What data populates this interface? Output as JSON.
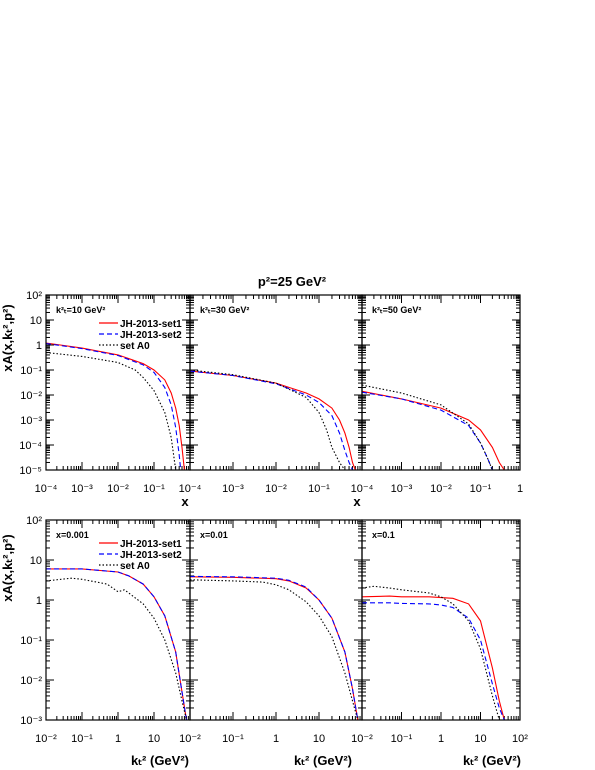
{
  "figure": {
    "title": "p²=25 GeV²",
    "row1_ylabel": "xA(x,kₜ²,p²)",
    "row2_ylabel": "xA(x,kₜ²,p²)",
    "row1_xlabel": "x",
    "row2_xlabel": "kₜ² (GeV²)"
  },
  "legend": {
    "entries": [
      {
        "name": "JH-2013-set1",
        "color": "#ff0000",
        "style": "solid"
      },
      {
        "name": "JH-2013-set2",
        "color": "#0000ff",
        "style": "dashed"
      },
      {
        "name": "set A0",
        "color": "#000000",
        "style": "dotted"
      }
    ]
  },
  "chart_data": [
    {
      "type": "line",
      "panel_label": "k²ₜ=10 GeV²",
      "xlabel": "x",
      "log_x": true,
      "log_y": true,
      "xlim": [
        0.0001,
        1
      ],
      "ylim": [
        1e-05,
        100
      ],
      "x_tick_labels": [
        "10⁻⁴",
        "10⁻³",
        "10⁻²",
        "10⁻¹",
        "1"
      ],
      "y_tick_labels": [
        "10⁻⁵",
        "10⁻⁴",
        "10⁻³",
        "10⁻²",
        "10⁻¹",
        "1",
        "10",
        "10²"
      ],
      "series": [
        {
          "name": "JH-2013-set1",
          "x": [
            0.0001,
            0.001,
            0.01,
            0.05,
            0.1,
            0.2,
            0.3,
            0.4,
            0.5,
            0.6,
            0.7
          ],
          "y": [
            1.2,
            0.75,
            0.4,
            0.18,
            0.1,
            0.04,
            0.012,
            0.003,
            0.0006,
            8e-05,
            1e-05
          ]
        },
        {
          "name": "JH-2013-set2",
          "x": [
            0.0001,
            0.001,
            0.01,
            0.05,
            0.1,
            0.2,
            0.3,
            0.4,
            0.5,
            0.55
          ],
          "y": [
            1.15,
            0.72,
            0.38,
            0.16,
            0.08,
            0.02,
            0.004,
            0.0005,
            4e-05,
            1e-05
          ]
        },
        {
          "name": "set A0",
          "x": [
            0.0001,
            0.001,
            0.01,
            0.03,
            0.05,
            0.1,
            0.2,
            0.3,
            0.4
          ],
          "y": [
            0.5,
            0.35,
            0.2,
            0.1,
            0.05,
            0.015,
            0.002,
            0.0002,
            1e-05
          ]
        }
      ]
    },
    {
      "type": "line",
      "panel_label": "k²ₜ=30 GeV²",
      "xlabel": "x",
      "log_x": true,
      "log_y": true,
      "xlim": [
        0.0001,
        1
      ],
      "ylim": [
        1e-05,
        100
      ],
      "x_tick_labels": [
        "10⁻⁴",
        "10⁻³",
        "10⁻²",
        "10⁻¹",
        "1"
      ],
      "y_tick_labels": [],
      "series": [
        {
          "name": "JH-2013-set1",
          "x": [
            0.0001,
            0.001,
            0.01,
            0.05,
            0.1,
            0.2,
            0.3,
            0.4,
            0.5,
            0.6,
            0.7
          ],
          "y": [
            0.09,
            0.06,
            0.03,
            0.012,
            0.007,
            0.003,
            0.001,
            0.0003,
            8e-05,
            2e-05,
            1e-05
          ]
        },
        {
          "name": "JH-2013-set2",
          "x": [
            0.0001,
            0.001,
            0.01,
            0.05,
            0.1,
            0.2,
            0.3,
            0.4,
            0.5,
            0.6
          ],
          "y": [
            0.09,
            0.06,
            0.028,
            0.01,
            0.005,
            0.0015,
            0.0003,
            6e-05,
            2e-05,
            1e-05
          ]
        },
        {
          "name": "set A0",
          "x": [
            0.0001,
            0.001,
            0.01,
            0.05,
            0.1,
            0.15,
            0.2,
            0.3,
            0.4
          ],
          "y": [
            0.1,
            0.065,
            0.03,
            0.008,
            0.002,
            0.0004,
            8e-05,
            2e-05,
            1e-05
          ]
        }
      ]
    },
    {
      "type": "line",
      "panel_label": "k²ₜ=50 GeV²",
      "xlabel": "x",
      "log_x": true,
      "log_y": true,
      "xlim": [
        0.0001,
        1
      ],
      "ylim": [
        1e-05,
        100
      ],
      "x_tick_labels": [
        "10⁻⁴",
        "10⁻³",
        "10⁻²",
        "10⁻¹",
        "1"
      ],
      "y_tick_labels": [],
      "series": [
        {
          "name": "JH-2013-set1",
          "x": [
            0.0001,
            0.001,
            0.01,
            0.05,
            0.1,
            0.2,
            0.3,
            0.4,
            0.5
          ],
          "y": [
            0.014,
            0.007,
            0.003,
            0.001,
            0.0004,
            8e-05,
            2e-05,
            1e-05,
            1e-05
          ]
        },
        {
          "name": "JH-2013-set2",
          "x": [
            0.0001,
            0.001,
            0.01,
            0.05,
            0.1,
            0.15,
            0.2
          ],
          "y": [
            0.013,
            0.007,
            0.0025,
            0.0006,
            0.00012,
            3e-05,
            1e-05
          ]
        },
        {
          "name": "set A0",
          "x": [
            0.0001,
            0.001,
            0.01,
            0.05,
            0.1,
            0.15,
            0.2
          ],
          "y": [
            0.025,
            0.012,
            0.004,
            0.0007,
            0.00012,
            3e-05,
            1e-05
          ]
        }
      ]
    },
    {
      "type": "line",
      "panel_label": "x=0.001",
      "xlabel": "kₜ² (GeV²)",
      "log_x": true,
      "log_y": true,
      "xlim": [
        0.01,
        100
      ],
      "ylim": [
        0.001,
        100
      ],
      "x_tick_labels": [
        "10⁻²",
        "10⁻¹",
        "1",
        "10",
        "10²"
      ],
      "y_tick_labels": [
        "10⁻³",
        "10⁻²",
        "10⁻¹",
        "1",
        "10",
        "10²"
      ],
      "series": [
        {
          "name": "JH-2013-set1",
          "x": [
            0.01,
            0.1,
            1,
            2,
            5,
            10,
            20,
            40,
            60,
            80
          ],
          "y": [
            6,
            6,
            5,
            4,
            2.5,
            1.2,
            0.4,
            0.05,
            0.005,
            0.001
          ]
        },
        {
          "name": "JH-2013-set2",
          "x": [
            0.01,
            0.1,
            1,
            2,
            5,
            10,
            20,
            40,
            60,
            80
          ],
          "y": [
            6,
            6,
            5,
            4,
            2.5,
            1.2,
            0.4,
            0.05,
            0.005,
            0.001
          ]
        },
        {
          "name": "set A0",
          "x": [
            0.01,
            0.05,
            0.1,
            0.5,
            1,
            1.5,
            2,
            5,
            10,
            20,
            40,
            60,
            80
          ],
          "y": [
            3,
            3.5,
            3.3,
            2.5,
            1.6,
            1.8,
            1.5,
            0.8,
            0.35,
            0.1,
            0.015,
            0.003,
            0.001
          ]
        }
      ]
    },
    {
      "type": "line",
      "panel_label": "x=0.01",
      "xlabel": "kₜ² (GeV²)",
      "log_x": true,
      "log_y": true,
      "xlim": [
        0.01,
        100
      ],
      "ylim": [
        0.001,
        100
      ],
      "x_tick_labels": [
        "10⁻²",
        "10⁻¹",
        "1",
        "10",
        "10²"
      ],
      "y_tick_labels": [],
      "series": [
        {
          "name": "JH-2013-set1",
          "x": [
            0.01,
            0.1,
            1,
            2,
            5,
            10,
            20,
            40,
            60,
            80
          ],
          "y": [
            3.8,
            3.7,
            3.4,
            3,
            2,
            1,
            0.35,
            0.05,
            0.006,
            0.001
          ]
        },
        {
          "name": "JH-2013-set2",
          "x": [
            0.01,
            0.1,
            1,
            2,
            5,
            10,
            20,
            40,
            60,
            80
          ],
          "y": [
            3.9,
            3.8,
            3.5,
            3.1,
            2.1,
            1,
            0.35,
            0.05,
            0.006,
            0.001
          ]
        },
        {
          "name": "set A0",
          "x": [
            0.01,
            0.1,
            0.5,
            1,
            2,
            5,
            10,
            20,
            40,
            60,
            80
          ],
          "y": [
            3.2,
            3,
            2.8,
            2.4,
            1.8,
            0.9,
            0.4,
            0.12,
            0.015,
            0.003,
            0.001
          ]
        }
      ]
    },
    {
      "type": "line",
      "panel_label": "x=0.1",
      "xlabel": "kₜ² (GeV²)",
      "log_x": true,
      "log_y": true,
      "xlim": [
        0.01,
        100
      ],
      "ylim": [
        0.001,
        100
      ],
      "x_tick_labels": [
        "10⁻²",
        "10⁻¹",
        "1",
        "10",
        "10²"
      ],
      "y_tick_labels": [],
      "series": [
        {
          "name": "JH-2013-set1",
          "x": [
            0.01,
            0.05,
            0.1,
            0.5,
            1,
            2,
            5,
            10,
            20,
            30,
            40,
            50
          ],
          "y": [
            1.2,
            1.25,
            1.2,
            1.2,
            1.15,
            1.1,
            0.8,
            0.3,
            0.02,
            0.003,
            0.001,
            0.001
          ]
        },
        {
          "name": "JH-2013-set2",
          "x": [
            0.01,
            0.05,
            0.1,
            0.5,
            1,
            2,
            5,
            10,
            20,
            30,
            40
          ],
          "y": [
            0.85,
            0.85,
            0.82,
            0.8,
            0.75,
            0.65,
            0.35,
            0.1,
            0.008,
            0.002,
            0.001
          ]
        },
        {
          "name": "set A0",
          "x": [
            0.01,
            0.02,
            0.05,
            0.1,
            0.5,
            1,
            2,
            5,
            10,
            20,
            30
          ],
          "y": [
            2.0,
            2.2,
            2.0,
            1.8,
            1.5,
            1.2,
            0.8,
            0.3,
            0.06,
            0.004,
            0.001
          ]
        }
      ]
    }
  ]
}
